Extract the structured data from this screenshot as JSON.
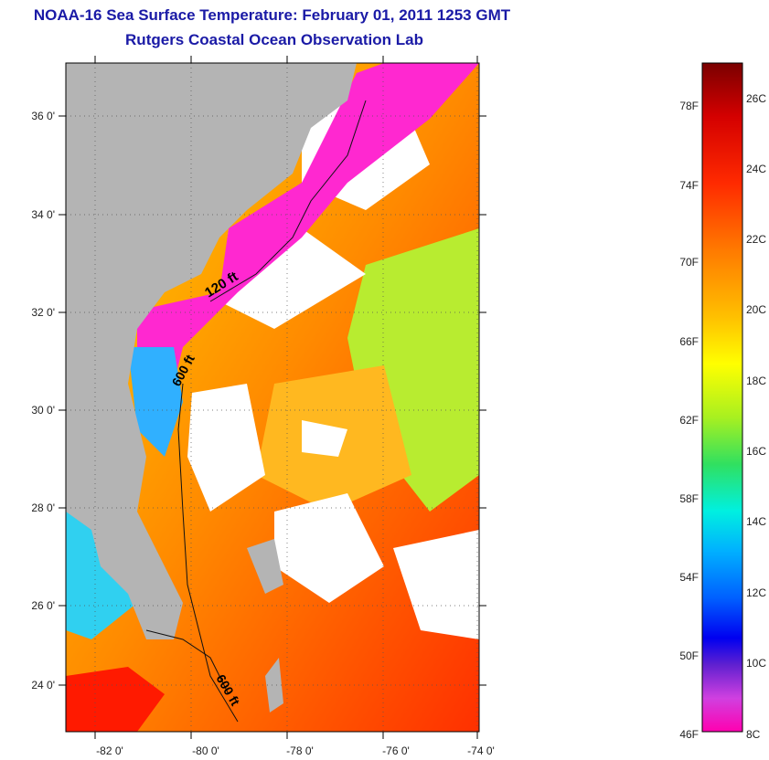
{
  "header": {
    "title": "NOAA-16 Sea Surface Temperature:  February 01, 2011 1253 GMT",
    "subtitle": "Rutgers Coastal Ocean Observation Lab"
  },
  "map": {
    "lat_labels": [
      "36 0'",
      "34 0'",
      "32 0'",
      "30 0'",
      "28 0'",
      "26 0'",
      "24 0'"
    ],
    "lon_labels": [
      "-82 0'",
      "-80 0'",
      "-78 0'",
      "-76 0'",
      "-74 0'"
    ],
    "contours": [
      "120 ft",
      "600 ft",
      "600 ft"
    ]
  },
  "colorbar": {
    "f_labels": [
      "78F",
      "74F",
      "70F",
      "66F",
      "62F",
      "58F",
      "54F",
      "50F",
      "46F"
    ],
    "c_labels": [
      "26C",
      "24C",
      "22C",
      "20C",
      "18C",
      "16C",
      "14C",
      "12C",
      "10C",
      "8C"
    ]
  },
  "colors": {
    "land": "#b4b4b4",
    "title": "#1a1aa6"
  }
}
